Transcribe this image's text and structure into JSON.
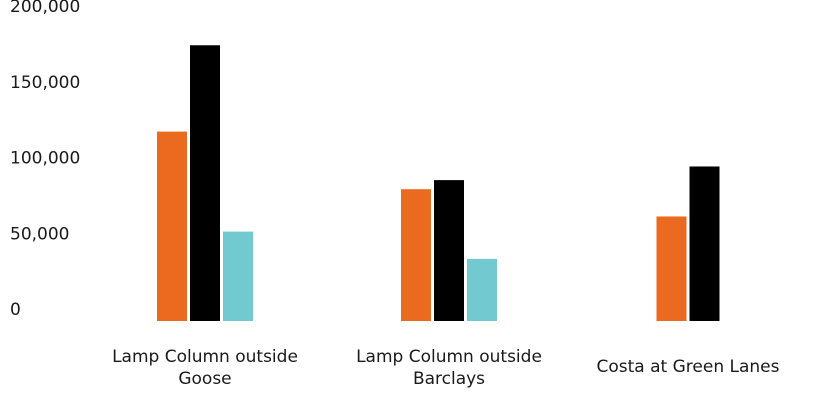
{
  "chart_data": {
    "type": "bar",
    "title": "",
    "xlabel": "",
    "ylabel": "",
    "ylim": [
      0,
      200000
    ],
    "y_ticks": [
      0,
      50000,
      100000,
      150000,
      200000
    ],
    "y_tick_labels": [
      "0",
      "50,000",
      "100,000",
      "150,000",
      "200,000"
    ],
    "grid": false,
    "legend": "none",
    "categories": [
      [
        "Lamp Column outside",
        "Goose"
      ],
      [
        "Lamp Column outside",
        "Barclays"
      ],
      [
        "Costa at Green Lanes"
      ]
    ],
    "series": [
      {
        "color": "#ea6a20",
        "values": [
          125000,
          87000,
          69000
        ]
      },
      {
        "color": "#000000",
        "values": [
          182000,
          93000,
          102000
        ]
      },
      {
        "color": "#72c9d0",
        "values": [
          59000,
          41000,
          null
        ]
      }
    ]
  }
}
